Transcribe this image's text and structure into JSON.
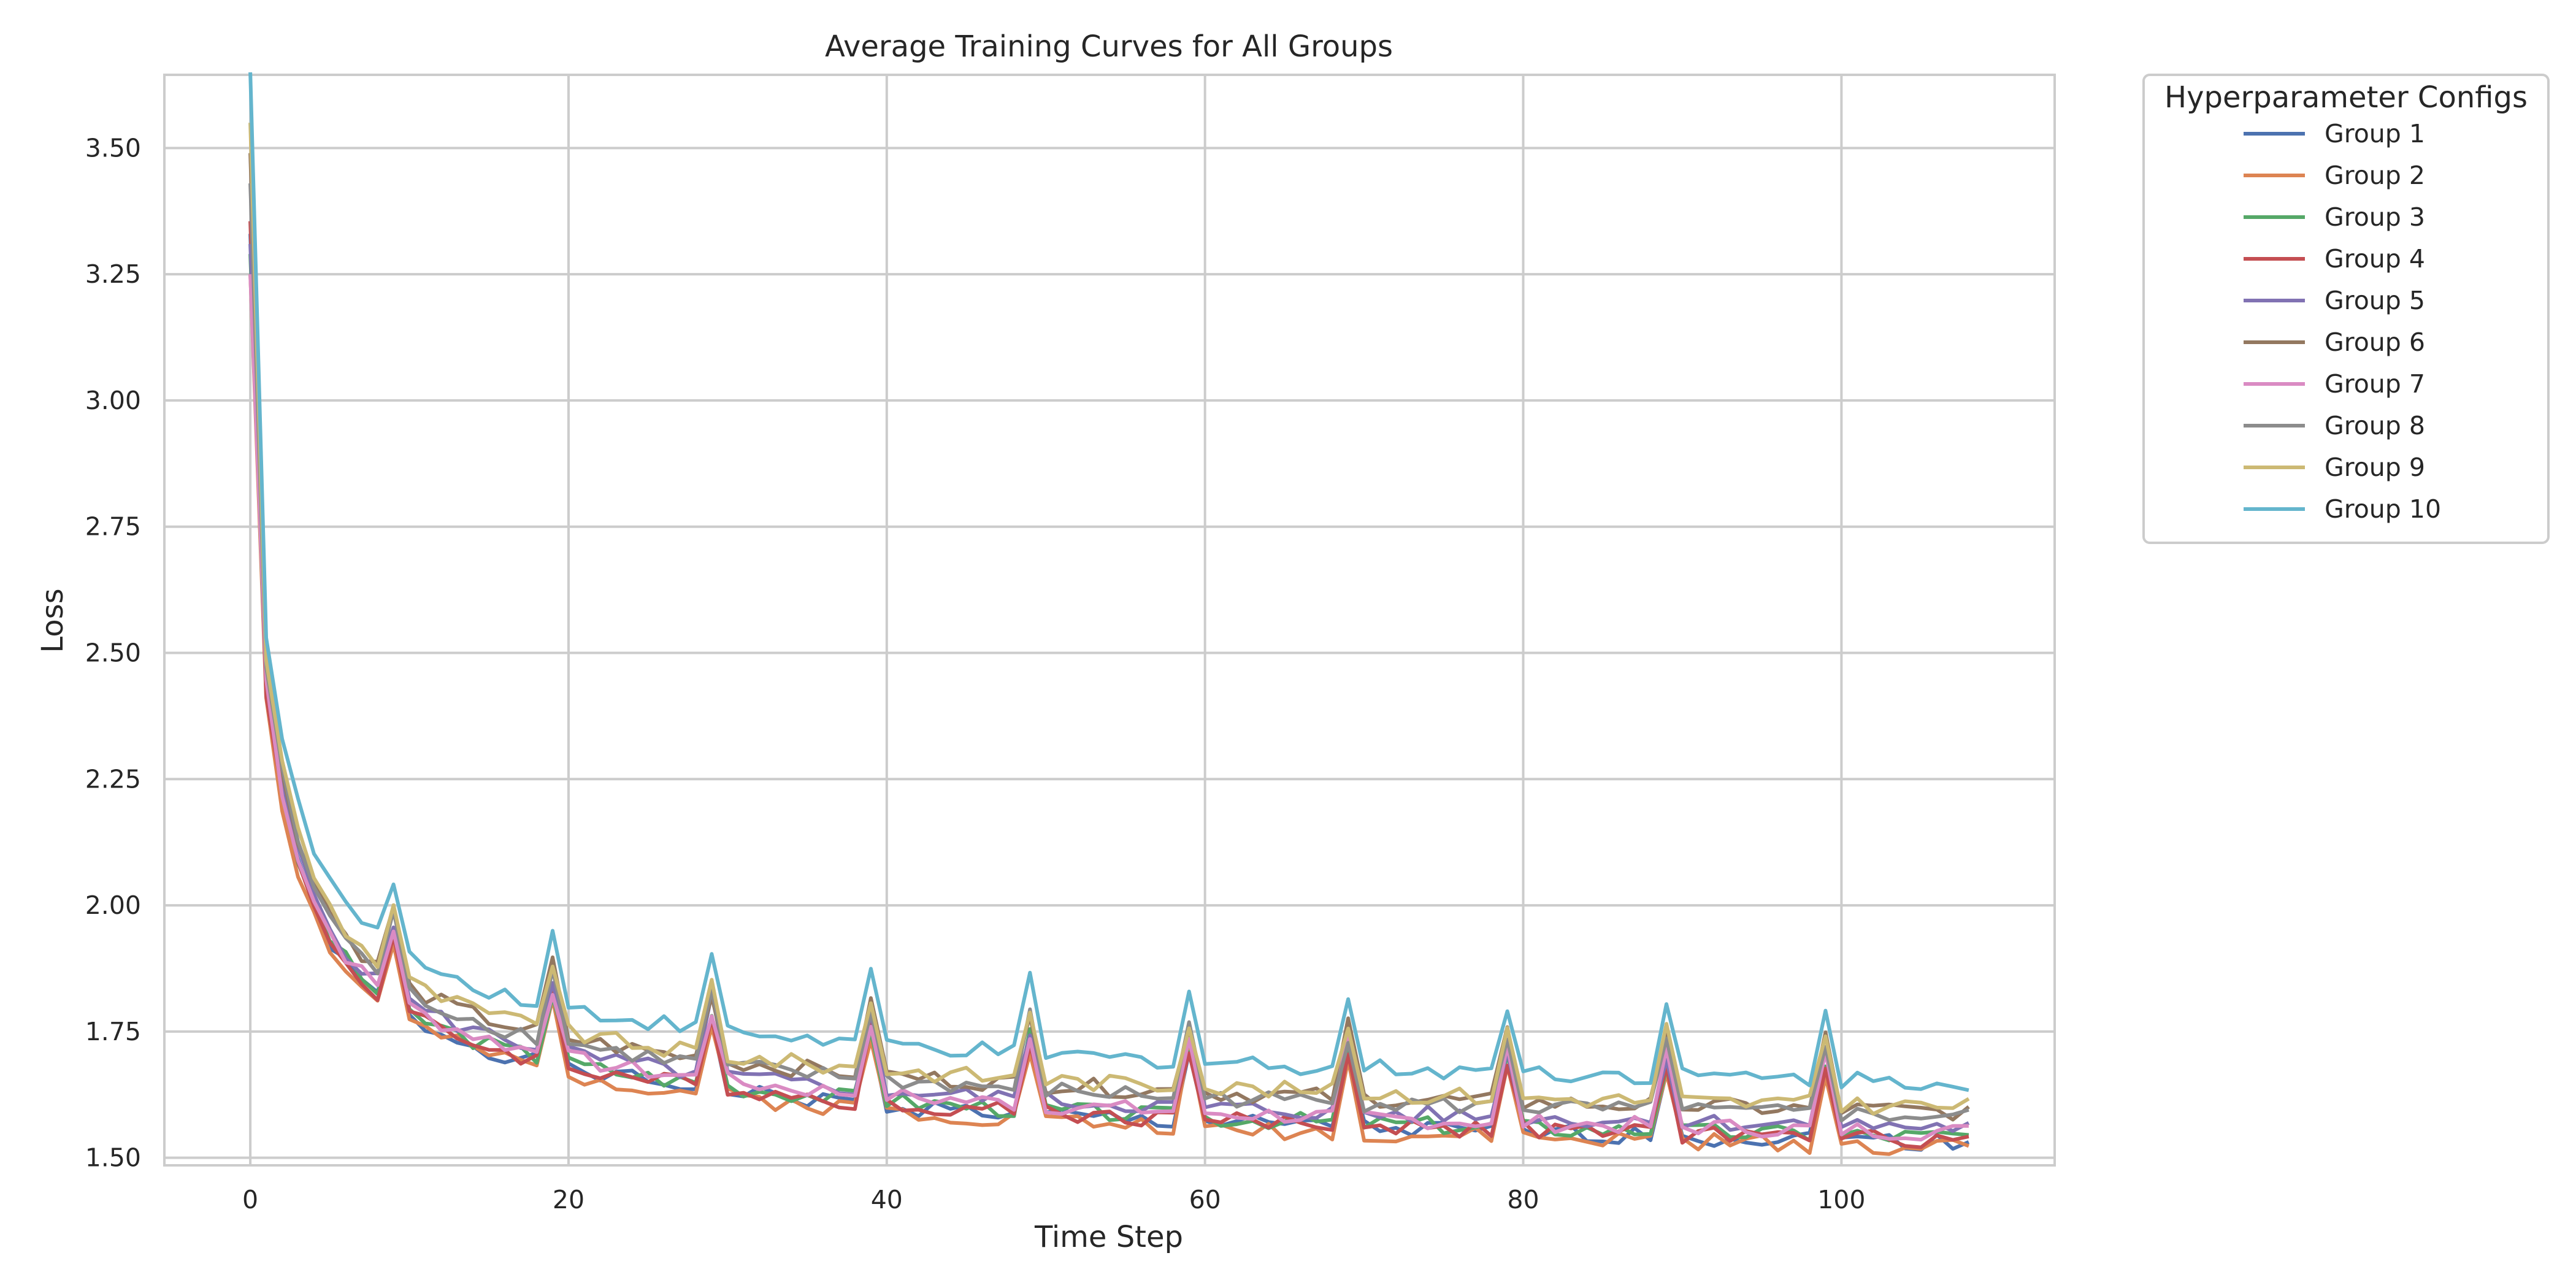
{
  "chart_data": {
    "type": "line",
    "title": "Average Training Curves for All Groups",
    "xlabel": "Time Step",
    "ylabel": "Loss",
    "xlim": [
      -5.4,
      113.4
    ],
    "ylim": [
      1.485,
      3.645
    ],
    "xticks": [
      0,
      20,
      40,
      60,
      80,
      100
    ],
    "yticks": [
      1.5,
      1.75,
      2.0,
      2.25,
      2.5,
      2.75,
      3.0,
      3.25,
      3.5
    ],
    "grid": true,
    "legend": {
      "title": "Hyperparameter Configs",
      "placement": "outside-top-right"
    },
    "series": [
      {
        "name": "Group 1",
        "color": "#4c72b0",
        "offset": -0.02,
        "start": 3.35,
        "seed": 1
      },
      {
        "name": "Group 2",
        "color": "#dd8452",
        "offset": -0.03,
        "start": 3.28,
        "seed": 2
      },
      {
        "name": "Group 3",
        "color": "#55a868",
        "offset": -0.01,
        "start": 3.3,
        "seed": 3
      },
      {
        "name": "Group 4",
        "color": "#c44e52",
        "offset": -0.015,
        "start": 3.37,
        "seed": 4
      },
      {
        "name": "Group 5",
        "color": "#8172b3",
        "offset": 0.01,
        "start": 3.3,
        "seed": 5
      },
      {
        "name": "Group 6",
        "color": "#937860",
        "offset": 0.04,
        "start": 3.45,
        "seed": 6
      },
      {
        "name": "Group 7",
        "color": "#da8bc3",
        "offset": 0.0,
        "start": 3.25,
        "seed": 7
      },
      {
        "name": "Group 8",
        "color": "#8c8c8c",
        "offset": 0.03,
        "start": 3.4,
        "seed": 8
      },
      {
        "name": "Group 9",
        "color": "#ccb974",
        "offset": 0.05,
        "start": 3.5,
        "seed": 9
      },
      {
        "name": "Group 10",
        "color": "#64b5cd",
        "offset": 0.1,
        "start": 3.55,
        "seed": 10
      }
    ],
    "x_count": 109,
    "spike_steps": [
      9,
      19,
      29,
      39,
      49,
      59,
      69,
      79,
      89,
      99
    ]
  }
}
